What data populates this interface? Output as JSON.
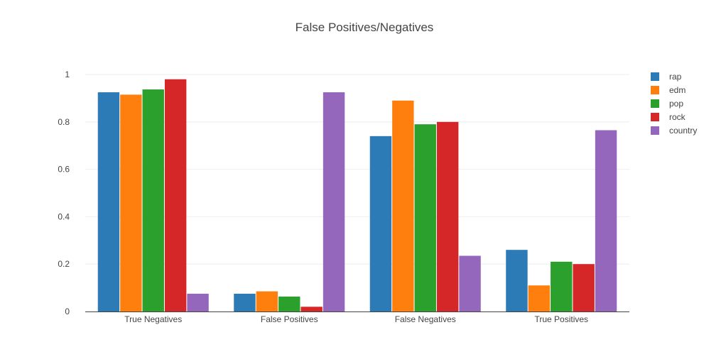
{
  "chart_data": {
    "type": "bar",
    "title": "False Positives/Negatives",
    "xlabel": "",
    "ylabel": "",
    "categories": [
      "True Negatives",
      "False Positives",
      "False Negatives",
      "True Positives"
    ],
    "series": [
      {
        "name": "rap",
        "color": "#2c7bb6",
        "values": [
          0.925,
          0.075,
          0.74,
          0.26
        ]
      },
      {
        "name": "edm",
        "color": "#ff7f0e",
        "values": [
          0.915,
          0.085,
          0.89,
          0.11
        ]
      },
      {
        "name": "pop",
        "color": "#2ca02c",
        "values": [
          0.937,
          0.063,
          0.79,
          0.21
        ]
      },
      {
        "name": "rock",
        "color": "#d62728",
        "values": [
          0.98,
          0.02,
          0.8,
          0.2
        ]
      },
      {
        "name": "country",
        "color": "#9467bd",
        "values": [
          0.075,
          0.925,
          0.235,
          0.765
        ]
      }
    ],
    "ylim": [
      0,
      1.0
    ],
    "yticks": [
      0,
      0.2,
      0.4,
      0.6,
      0.8,
      1
    ],
    "ytick_labels": [
      "0",
      "0.2",
      "0.4",
      "0.6",
      "0.8",
      "1"
    ],
    "grid": true,
    "legend_position": "top-right"
  }
}
